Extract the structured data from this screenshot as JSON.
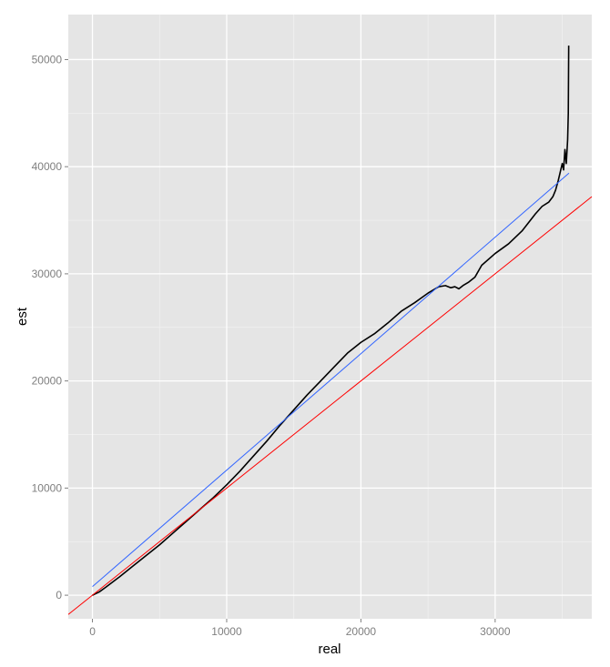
{
  "chart_data": {
    "type": "line",
    "title": "",
    "xlabel": "real",
    "ylabel": "est",
    "xlim": [
      -1800,
      37200
    ],
    "ylim": [
      -2200,
      54200
    ],
    "grid": true,
    "legend": "none",
    "x_ticks": [
      {
        "value": 0,
        "label": "0"
      },
      {
        "value": 10000,
        "label": "10000"
      },
      {
        "value": 20000,
        "label": "20000"
      },
      {
        "value": 30000,
        "label": "30000"
      }
    ],
    "x_minor_ticks": [
      5000,
      15000,
      25000,
      35000
    ],
    "y_ticks": [
      {
        "value": 0,
        "label": "0"
      },
      {
        "value": 10000,
        "label": "10000"
      },
      {
        "value": 20000,
        "label": "20000"
      },
      {
        "value": 30000,
        "label": "30000"
      },
      {
        "value": 40000,
        "label": "40000"
      },
      {
        "value": 50000,
        "label": "50000"
      }
    ],
    "y_minor_ticks": [
      5000,
      15000,
      25000,
      35000,
      45000
    ],
    "series": [
      {
        "color": "#000000",
        "points": [
          [
            0,
            0
          ],
          [
            500,
            300
          ],
          [
            1000,
            750
          ],
          [
            2000,
            1700
          ],
          [
            3000,
            2700
          ],
          [
            4000,
            3700
          ],
          [
            5000,
            4700
          ],
          [
            6000,
            5800
          ],
          [
            7000,
            6900
          ],
          [
            8000,
            8000
          ],
          [
            9000,
            9100
          ],
          [
            10000,
            10300
          ],
          [
            11000,
            11600
          ],
          [
            12000,
            13000
          ],
          [
            13000,
            14400
          ],
          [
            14000,
            15900
          ],
          [
            15000,
            17300
          ],
          [
            16000,
            18700
          ],
          [
            17000,
            20000
          ],
          [
            18000,
            21300
          ],
          [
            19000,
            22600
          ],
          [
            20000,
            23600
          ],
          [
            21000,
            24400
          ],
          [
            22000,
            25400
          ],
          [
            23000,
            26500
          ],
          [
            24000,
            27300
          ],
          [
            25000,
            28200
          ],
          [
            25800,
            28800
          ],
          [
            26300,
            28900
          ],
          [
            26700,
            28700
          ],
          [
            27000,
            28800
          ],
          [
            27300,
            28600
          ],
          [
            27600,
            28900
          ],
          [
            28000,
            29200
          ],
          [
            28500,
            29700
          ],
          [
            29000,
            30800
          ],
          [
            30000,
            31900
          ],
          [
            31000,
            32800
          ],
          [
            32000,
            34000
          ],
          [
            33000,
            35600
          ],
          [
            33500,
            36300
          ],
          [
            34000,
            36700
          ],
          [
            34300,
            37200
          ],
          [
            34500,
            37800
          ],
          [
            34700,
            38700
          ],
          [
            34850,
            39500
          ],
          [
            35000,
            40300
          ],
          [
            35100,
            39700
          ],
          [
            35200,
            41600
          ],
          [
            35300,
            40300
          ],
          [
            35400,
            42500
          ],
          [
            35450,
            45000
          ],
          [
            35480,
            51300
          ]
        ]
      },
      {
        "color": "#3366ff",
        "points": [
          [
            0,
            800
          ],
          [
            35500,
            39400
          ]
        ]
      },
      {
        "color": "#ff0000",
        "points": [
          [
            -1800,
            -1800
          ],
          [
            37200,
            37200
          ]
        ]
      }
    ]
  }
}
